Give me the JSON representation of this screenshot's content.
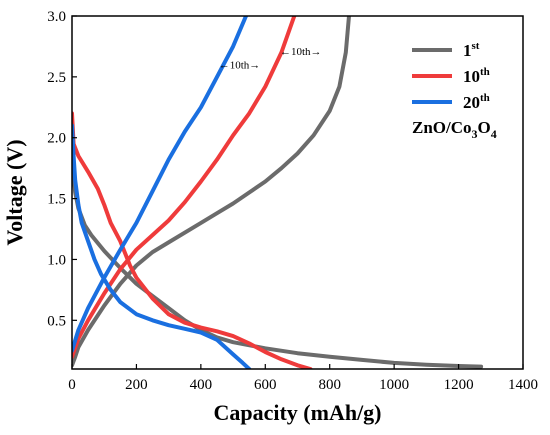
{
  "chart_data": {
    "type": "line",
    "xlabel": "Capacity (mAh/g)",
    "ylabel": "Voltage (V)",
    "xlim": [
      0,
      1400
    ],
    "ylim": [
      0.1,
      3.0
    ],
    "xticks": [
      "0",
      "200",
      "400",
      "600",
      "800",
      "1000",
      "1200",
      "1400"
    ],
    "yticks": [
      "0.5",
      "1.0",
      "1.5",
      "2.0",
      "2.5",
      "3.0"
    ],
    "legend": {
      "placement": "top-right",
      "entries": [
        {
          "base": "1",
          "sup": "st",
          "color": "#6b6b6b"
        },
        {
          "base": "10",
          "sup": "th",
          "color": "#ef3b3b"
        },
        {
          "base": "20",
          "sup": "th",
          "color": "#1a6fe0"
        }
      ]
    },
    "material_label": {
      "parts": [
        "ZnO/Co",
        "3",
        "O",
        "4"
      ]
    },
    "annotations": [
      {
        "text": "←10th→",
        "x": 520,
        "y": 2.57
      },
      {
        "text": "←10th→",
        "x": 710,
        "y": 2.68
      }
    ],
    "series": [
      {
        "name": "1st",
        "color": "#6b6b6b",
        "discharge": [
          [
            0,
            1.8
          ],
          [
            5,
            1.68
          ],
          [
            10,
            1.55
          ],
          [
            20,
            1.42
          ],
          [
            40,
            1.28
          ],
          [
            60,
            1.2
          ],
          [
            100,
            1.07
          ],
          [
            150,
            0.93
          ],
          [
            200,
            0.8
          ],
          [
            250,
            0.7
          ],
          [
            300,
            0.6
          ],
          [
            350,
            0.5
          ],
          [
            400,
            0.42
          ],
          [
            450,
            0.36
          ],
          [
            500,
            0.32
          ],
          [
            600,
            0.27
          ],
          [
            700,
            0.23
          ],
          [
            800,
            0.2
          ],
          [
            900,
            0.175
          ],
          [
            1000,
            0.15
          ],
          [
            1100,
            0.135
          ],
          [
            1200,
            0.125
          ],
          [
            1270,
            0.12
          ]
        ],
        "charge": [
          [
            0,
            0.13
          ],
          [
            10,
            0.2
          ],
          [
            20,
            0.28
          ],
          [
            50,
            0.42
          ],
          [
            100,
            0.62
          ],
          [
            150,
            0.8
          ],
          [
            200,
            0.95
          ],
          [
            250,
            1.06
          ],
          [
            300,
            1.14
          ],
          [
            400,
            1.3
          ],
          [
            450,
            1.38
          ],
          [
            500,
            1.46
          ],
          [
            550,
            1.55
          ],
          [
            600,
            1.64
          ],
          [
            650,
            1.75
          ],
          [
            700,
            1.87
          ],
          [
            750,
            2.02
          ],
          [
            800,
            2.22
          ],
          [
            830,
            2.42
          ],
          [
            850,
            2.7
          ],
          [
            860,
            3.0
          ]
        ]
      },
      {
        "name": "10th",
        "color": "#ef3b3b",
        "discharge": [
          [
            0,
            2.2
          ],
          [
            5,
            1.95
          ],
          [
            20,
            1.85
          ],
          [
            50,
            1.72
          ],
          [
            80,
            1.58
          ],
          [
            100,
            1.45
          ],
          [
            120,
            1.3
          ],
          [
            150,
            1.15
          ],
          [
            180,
            0.95
          ],
          [
            200,
            0.85
          ],
          [
            250,
            0.68
          ],
          [
            300,
            0.55
          ],
          [
            350,
            0.48
          ],
          [
            400,
            0.44
          ],
          [
            450,
            0.41
          ],
          [
            500,
            0.37
          ],
          [
            550,
            0.31
          ],
          [
            600,
            0.24
          ],
          [
            650,
            0.18
          ],
          [
            700,
            0.13
          ],
          [
            740,
            0.1
          ]
        ],
        "charge": [
          [
            0,
            0.2
          ],
          [
            20,
            0.35
          ],
          [
            50,
            0.5
          ],
          [
            100,
            0.72
          ],
          [
            150,
            0.92
          ],
          [
            200,
            1.08
          ],
          [
            250,
            1.2
          ],
          [
            300,
            1.32
          ],
          [
            350,
            1.47
          ],
          [
            400,
            1.64
          ],
          [
            450,
            1.82
          ],
          [
            500,
            2.02
          ],
          [
            550,
            2.2
          ],
          [
            600,
            2.42
          ],
          [
            650,
            2.7
          ],
          [
            690,
            3.0
          ]
        ]
      },
      {
        "name": "20th",
        "color": "#1a6fe0",
        "discharge": [
          [
            0,
            2.1
          ],
          [
            5,
            1.85
          ],
          [
            10,
            1.65
          ],
          [
            20,
            1.45
          ],
          [
            30,
            1.3
          ],
          [
            50,
            1.15
          ],
          [
            70,
            1.0
          ],
          [
            90,
            0.88
          ],
          [
            120,
            0.75
          ],
          [
            150,
            0.65
          ],
          [
            200,
            0.55
          ],
          [
            250,
            0.5
          ],
          [
            300,
            0.46
          ],
          [
            350,
            0.43
          ],
          [
            400,
            0.4
          ],
          [
            450,
            0.34
          ],
          [
            500,
            0.22
          ],
          [
            530,
            0.15
          ],
          [
            550,
            0.1
          ]
        ],
        "charge": [
          [
            0,
            0.25
          ],
          [
            20,
            0.42
          ],
          [
            50,
            0.6
          ],
          [
            100,
            0.85
          ],
          [
            150,
            1.08
          ],
          [
            200,
            1.3
          ],
          [
            250,
            1.56
          ],
          [
            300,
            1.82
          ],
          [
            350,
            2.05
          ],
          [
            400,
            2.25
          ],
          [
            450,
            2.5
          ],
          [
            500,
            2.75
          ],
          [
            540,
            3.0
          ]
        ]
      }
    ]
  }
}
